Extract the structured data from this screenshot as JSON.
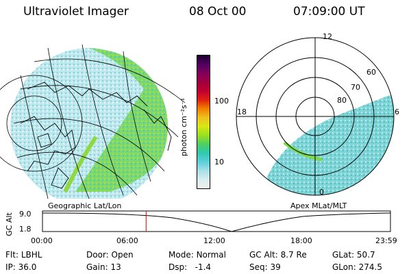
{
  "header": {
    "instrument": "Ultraviolet Imager",
    "date": "08 Oct 00",
    "time": "07:09:00 UT"
  },
  "colorbar": {
    "unit_label": "photon cm⁻²s⁻¹",
    "tick_high": "100",
    "tick_low": "10",
    "colors": [
      "#f0f0f0",
      "#d8eef0",
      "#a8e0e8",
      "#5ccfd8",
      "#30c8b0",
      "#4cd060",
      "#9ce020",
      "#d8e818",
      "#f0c020",
      "#f08000",
      "#e02010",
      "#c00030",
      "#a00040",
      "#80005a",
      "#500060",
      "#1a0030"
    ]
  },
  "left_map": {
    "label": "Geographic Lat/Lon"
  },
  "right_map": {
    "label": "Apex MLat/MLT",
    "mlt_labels": {
      "top": "12",
      "left": "18",
      "right": "6",
      "bottom": "0"
    },
    "lat_labels": [
      "60",
      "70",
      "80"
    ]
  },
  "altitude_plot": {
    "ylabel": "GC Alt",
    "y_ticks": [
      "9.0",
      "1.8"
    ],
    "x_ticks": [
      "00:00",
      "06:00",
      "12:00",
      "18:00",
      "23:59"
    ],
    "marker_time": "07:09",
    "marker_color": "#e00000"
  },
  "status": {
    "row1": [
      {
        "label": "Flt:",
        "value": "LBHL"
      },
      {
        "label": "Door:",
        "value": "Open"
      },
      {
        "label": "Mode:",
        "value": "Normal"
      },
      {
        "label": "GC Alt:",
        "value": "8.7 Re"
      },
      {
        "label": "GLat:",
        "value": "50.7"
      }
    ],
    "row2": [
      {
        "label": "IP:",
        "value": "36.0"
      },
      {
        "label": "Gain:",
        "value": "13"
      },
      {
        "label": "Dsp:",
        "value": "-1.4"
      },
      {
        "label": "Seq:",
        "value": "39"
      },
      {
        "label": "GLon:",
        "value": "274.5"
      }
    ]
  }
}
